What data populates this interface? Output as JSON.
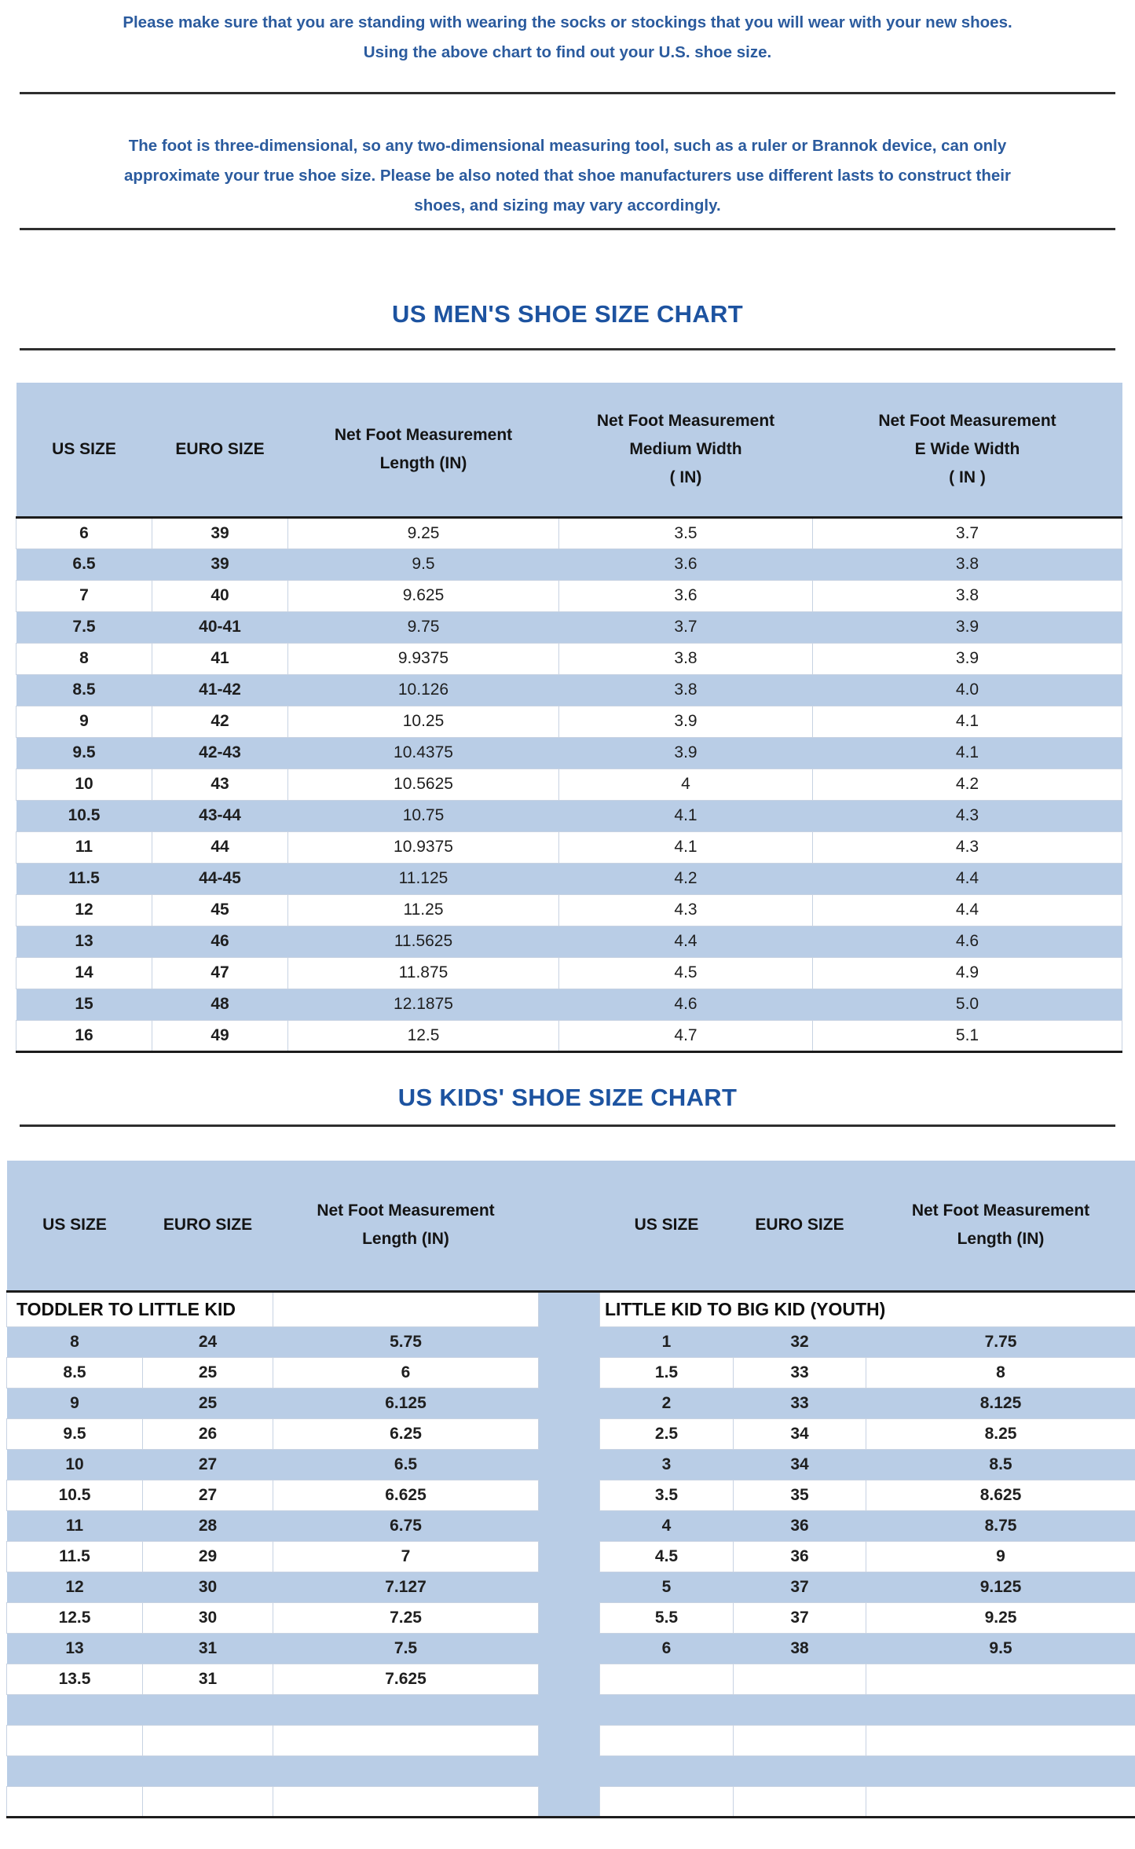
{
  "colors": {
    "band_blue": "#b9cde6",
    "paragraph_blue": "#2b5b9e",
    "title_blue": "#1d53a0",
    "rule_dark": "#2e2e2e",
    "table_rule_black": "#1c1c1c"
  },
  "intro": {
    "p1_lines": [
      "Please make sure that you are standing with wearing the socks or stockings that you will wear with your new shoes.",
      "Using the above chart to find out your U.S. shoe size."
    ],
    "p2_lines": [
      "The foot is three-dimensional, so any two-dimensional measuring tool, such as a ruler or Brannok device, can only",
      "approximate your true shoe size. Please be also noted that shoe manufacturers use different lasts to construct their",
      "shoes, and sizing may vary accordingly."
    ]
  },
  "mens_chart": {
    "title": "US MEN'S SHOE SIZE CHART",
    "columns": [
      {
        "id": "us-size",
        "lines": [
          "US SIZE"
        ]
      },
      {
        "id": "euro-size",
        "lines": [
          "EURO SIZE"
        ]
      },
      {
        "id": "length",
        "lines": [
          "Net Foot Measurement",
          "Length (IN)"
        ]
      },
      {
        "id": "medium-width",
        "lines": [
          "Net Foot Measurement",
          "Medium Width",
          "（IN)"
        ]
      },
      {
        "id": "e-wide-width",
        "lines": [
          "Net Foot Measurement",
          "E Wide Width",
          "（IN）"
        ]
      }
    ],
    "rows": [
      [
        "6",
        "39",
        "9.25",
        "3.5",
        "3.7"
      ],
      [
        "6.5",
        "39",
        "9.5",
        "3.6",
        "3.8"
      ],
      [
        "7",
        "40",
        "9.625",
        "3.6",
        "3.8"
      ],
      [
        "7.5",
        "40-41",
        "9.75",
        "3.7",
        "3.9"
      ],
      [
        "8",
        "41",
        "9.9375",
        "3.8",
        "3.9"
      ],
      [
        "8.5",
        "41-42",
        "10.126",
        "3.8",
        "4.0"
      ],
      [
        "9",
        "42",
        "10.25",
        "3.9",
        "4.1"
      ],
      [
        "9.5",
        "42-43",
        "10.4375",
        "3.9",
        "4.1"
      ],
      [
        "10",
        "43",
        "10.5625",
        "4",
        "4.2"
      ],
      [
        "10.5",
        "43-44",
        "10.75",
        "4.1",
        "4.3"
      ],
      [
        "11",
        "44",
        "10.9375",
        "4.1",
        "4.3"
      ],
      [
        "11.5",
        "44-45",
        "11.125",
        "4.2",
        "4.4"
      ],
      [
        "12",
        "45",
        "11.25",
        "4.3",
        "4.4"
      ],
      [
        "13",
        "46",
        "11.5625",
        "4.4",
        "4.6"
      ],
      [
        "14",
        "47",
        "11.875",
        "4.5",
        "4.9"
      ],
      [
        "15",
        "48",
        "12.1875",
        "4.6",
        "5.0"
      ],
      [
        "16",
        "49",
        "12.5",
        "4.7",
        "5.1"
      ]
    ]
  },
  "kids_chart": {
    "title": "US KIDS' SHOE SIZE CHART",
    "columns": [
      {
        "id": "us-size",
        "lines": [
          "US SIZE"
        ]
      },
      {
        "id": "euro-size",
        "lines": [
          "EURO SIZE"
        ]
      },
      {
        "id": "length",
        "lines": [
          "Net Foot Measurement",
          "Length (IN)"
        ]
      }
    ],
    "left_section_label": "TODDLER TO LITTLE KID",
    "right_section_label": "LITTLE KID TO BIG KID (YOUTH)",
    "total_rows": 16,
    "left_rows": [
      [
        "8",
        "24",
        "5.75"
      ],
      [
        "8.5",
        "25",
        "6"
      ],
      [
        "9",
        "25",
        "6.125"
      ],
      [
        "9.5",
        "26",
        "6.25"
      ],
      [
        "10",
        "27",
        "6.5"
      ],
      [
        "10.5",
        "27",
        "6.625"
      ],
      [
        "11",
        "28",
        "6.75"
      ],
      [
        "11.5",
        "29",
        "7"
      ],
      [
        "12",
        "30",
        "7.127"
      ],
      [
        "12.5",
        "30",
        "7.25"
      ],
      [
        "13",
        "31",
        "7.5"
      ],
      [
        "13.5",
        "31",
        "7.625"
      ]
    ],
    "right_rows": [
      [
        "1",
        "32",
        "7.75"
      ],
      [
        "1.5",
        "33",
        "8"
      ],
      [
        "2",
        "33",
        "8.125"
      ],
      [
        "2.5",
        "34",
        "8.25"
      ],
      [
        "3",
        "34",
        "8.5"
      ],
      [
        "3.5",
        "35",
        "8.625"
      ],
      [
        "4",
        "36",
        "8.75"
      ],
      [
        "4.5",
        "36",
        "9"
      ],
      [
        "5",
        "37",
        "9.125"
      ],
      [
        "5.5",
        "37",
        "9.25"
      ],
      [
        "6",
        "38",
        "9.5"
      ]
    ]
  }
}
